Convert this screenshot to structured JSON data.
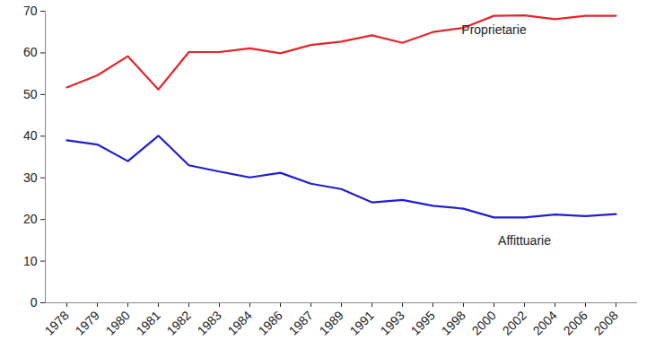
{
  "chart_data": {
    "type": "line",
    "categories": [
      "1978",
      "1979",
      "1980",
      "1981",
      "1982",
      "1983",
      "1984",
      "1986",
      "1987",
      "1989",
      "1991",
      "1993",
      "1995",
      "1998",
      "2000",
      "2002",
      "2004",
      "2006",
      "2008"
    ],
    "series": [
      {
        "name": "Proprietarie",
        "color": "#e3262b",
        "values": [
          51.7,
          54.6,
          59.2,
          51.2,
          60.2,
          60.2,
          61.1,
          59.9,
          61.9,
          62.7,
          64.2,
          62.4,
          65.0,
          66.0,
          68.9,
          69.0,
          68.1,
          68.9,
          68.9
        ]
      },
      {
        "name": "Affittuarie",
        "color": "#1f1fd1",
        "values": [
          39.0,
          38.0,
          34.0,
          40.1,
          33.0,
          31.5,
          30.1,
          31.2,
          28.6,
          27.3,
          24.1,
          24.7,
          23.3,
          22.6,
          20.5,
          20.5,
          21.2,
          20.8,
          21.3
        ]
      }
    ],
    "ylim": [
      0,
      70
    ],
    "yticks": [
      0,
      10,
      20,
      30,
      40,
      50,
      60,
      70
    ],
    "grid": false
  }
}
